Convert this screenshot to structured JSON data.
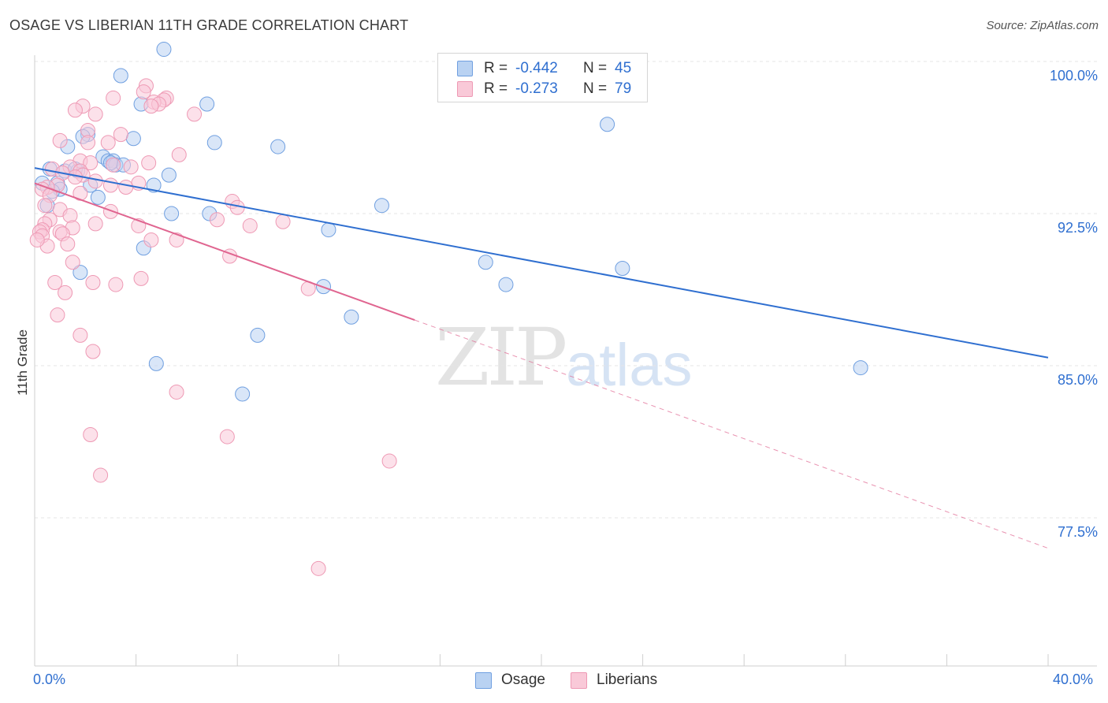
{
  "title": "OSAGE VS LIBERIAN 11TH GRADE CORRELATION CHART",
  "source": "Source: ZipAtlas.com",
  "watermark": {
    "zip": "ZIP",
    "atlas": "atlas"
  },
  "legend_top": {
    "rows": [
      {
        "r_label": "R =",
        "r_value": "-0.442",
        "n_label": "N =",
        "n_value": "45"
      },
      {
        "r_label": "R =",
        "r_value": "-0.273",
        "n_label": "N =",
        "n_value": "79"
      }
    ]
  },
  "legend_bottom": {
    "osage": "Osage",
    "liberians": "Liberians"
  },
  "colors": {
    "osage_fill": "#b9d2f2",
    "osage_stroke": "#6f9fe0",
    "osage_line": "#2f6fd0",
    "lib_fill": "#f9c9d8",
    "lib_stroke": "#ee99b4",
    "lib_line": "#e06590",
    "tick_text": "#2f6fd0",
    "grid": "#e6e6e6"
  },
  "chart_data": {
    "type": "scatter",
    "title": "OSAGE VS LIBERIAN 11TH GRADE CORRELATION CHART",
    "xlabel": "",
    "ylabel": "11th Grade",
    "xlim": [
      0,
      40
    ],
    "ylim": [
      70.0,
      100.5
    ],
    "x_tick_labels": {
      "left": "0.0%",
      "right": "40.0%"
    },
    "y_ticks": [
      {
        "value": 100.0,
        "label": "100.0%"
      },
      {
        "value": 92.5,
        "label": "92.5%"
      },
      {
        "value": 85.0,
        "label": "85.0%"
      },
      {
        "value": 77.5,
        "label": "77.5%"
      }
    ],
    "series": [
      {
        "name": "Osage",
        "R": -0.442,
        "N": 45,
        "trend": {
          "x0": 0.0,
          "y0": 94.75,
          "x1": 40.0,
          "y1": 85.4,
          "dashed_from": null
        },
        "points": [
          [
            5.1,
            100.6
          ],
          [
            3.4,
            99.3
          ],
          [
            4.2,
            97.9
          ],
          [
            6.8,
            97.9
          ],
          [
            3.9,
            96.2
          ],
          [
            2.1,
            96.4
          ],
          [
            7.1,
            96.0
          ],
          [
            9.6,
            95.8
          ],
          [
            1.3,
            95.8
          ],
          [
            1.9,
            96.3
          ],
          [
            2.7,
            95.3
          ],
          [
            2.9,
            95.1
          ],
          [
            3.1,
            95.1
          ],
          [
            3.2,
            94.9
          ],
          [
            3.5,
            94.9
          ],
          [
            0.6,
            94.7
          ],
          [
            1.2,
            94.6
          ],
          [
            1.7,
            94.6
          ],
          [
            5.3,
            94.4
          ],
          [
            0.3,
            94.0
          ],
          [
            0.9,
            94.0
          ],
          [
            2.2,
            93.9
          ],
          [
            4.7,
            93.9
          ],
          [
            1.0,
            93.7
          ],
          [
            0.7,
            93.6
          ],
          [
            2.5,
            93.3
          ],
          [
            13.7,
            92.9
          ],
          [
            0.5,
            92.9
          ],
          [
            5.4,
            92.5
          ],
          [
            6.9,
            92.5
          ],
          [
            11.6,
            91.7
          ],
          [
            4.3,
            90.8
          ],
          [
            17.8,
            90.1
          ],
          [
            1.8,
            89.6
          ],
          [
            23.2,
            89.8
          ],
          [
            18.6,
            89.0
          ],
          [
            11.4,
            88.9
          ],
          [
            12.5,
            87.4
          ],
          [
            8.8,
            86.5
          ],
          [
            4.8,
            85.1
          ],
          [
            32.6,
            84.9
          ],
          [
            8.2,
            83.6
          ],
          [
            22.6,
            96.9
          ],
          [
            1.6,
            94.7
          ],
          [
            3.0,
            95.0
          ]
        ]
      },
      {
        "name": "Liberians",
        "R": -0.273,
        "N": 79,
        "trend": {
          "x0": 0.0,
          "y0": 94.0,
          "x1": 40.0,
          "y1": 76.0,
          "solid_until_x": 15.0
        },
        "points": [
          [
            4.4,
            98.8
          ],
          [
            4.3,
            98.5
          ],
          [
            3.1,
            98.2
          ],
          [
            5.2,
            98.2
          ],
          [
            5.1,
            98.1
          ],
          [
            4.7,
            98.0
          ],
          [
            4.9,
            97.9
          ],
          [
            4.6,
            97.8
          ],
          [
            1.9,
            97.8
          ],
          [
            1.6,
            97.6
          ],
          [
            2.4,
            97.4
          ],
          [
            6.3,
            97.4
          ],
          [
            2.1,
            96.6
          ],
          [
            3.4,
            96.4
          ],
          [
            1.0,
            96.1
          ],
          [
            2.9,
            96.0
          ],
          [
            2.1,
            96.0
          ],
          [
            5.7,
            95.4
          ],
          [
            1.8,
            95.1
          ],
          [
            2.2,
            95.0
          ],
          [
            4.5,
            95.0
          ],
          [
            3.1,
            94.9
          ],
          [
            3.8,
            94.8
          ],
          [
            1.4,
            94.8
          ],
          [
            0.7,
            94.7
          ],
          [
            1.8,
            94.6
          ],
          [
            1.1,
            94.5
          ],
          [
            1.9,
            94.4
          ],
          [
            1.6,
            94.3
          ],
          [
            2.4,
            94.1
          ],
          [
            4.1,
            94.0
          ],
          [
            0.9,
            93.9
          ],
          [
            3.0,
            93.9
          ],
          [
            0.5,
            93.8
          ],
          [
            3.6,
            93.8
          ],
          [
            0.3,
            93.7
          ],
          [
            1.8,
            93.5
          ],
          [
            0.6,
            93.4
          ],
          [
            0.4,
            92.9
          ],
          [
            7.8,
            93.1
          ],
          [
            8.0,
            92.8
          ],
          [
            1.0,
            92.7
          ],
          [
            3.0,
            92.6
          ],
          [
            1.4,
            92.4
          ],
          [
            0.6,
            92.2
          ],
          [
            0.4,
            92.0
          ],
          [
            2.4,
            92.0
          ],
          [
            9.8,
            92.1
          ],
          [
            7.2,
            92.2
          ],
          [
            8.5,
            91.9
          ],
          [
            4.1,
            91.9
          ],
          [
            1.5,
            91.8
          ],
          [
            0.3,
            91.7
          ],
          [
            0.2,
            91.6
          ],
          [
            1.0,
            91.6
          ],
          [
            1.1,
            91.5
          ],
          [
            0.3,
            91.4
          ],
          [
            4.6,
            91.2
          ],
          [
            5.6,
            91.2
          ],
          [
            1.3,
            91.0
          ],
          [
            0.5,
            90.9
          ],
          [
            7.7,
            90.4
          ],
          [
            1.5,
            90.1
          ],
          [
            4.2,
            89.3
          ],
          [
            0.8,
            89.1
          ],
          [
            2.3,
            89.1
          ],
          [
            3.2,
            89.0
          ],
          [
            1.2,
            88.6
          ],
          [
            10.8,
            88.8
          ],
          [
            0.9,
            87.5
          ],
          [
            1.8,
            86.5
          ],
          [
            2.3,
            85.7
          ],
          [
            5.6,
            83.7
          ],
          [
            2.2,
            81.6
          ],
          [
            7.6,
            81.5
          ],
          [
            14.0,
            80.3
          ],
          [
            2.6,
            79.6
          ],
          [
            11.2,
            75.0
          ],
          [
            0.1,
            91.2
          ]
        ]
      }
    ]
  }
}
